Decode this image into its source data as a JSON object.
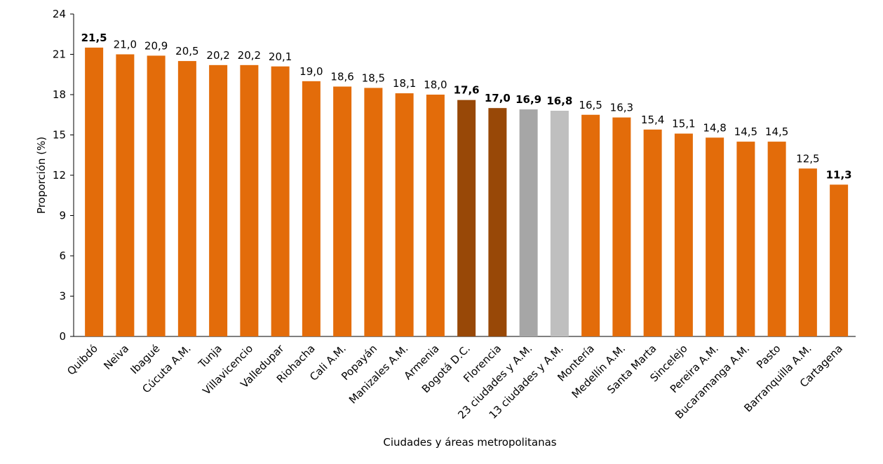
{
  "chart_data": {
    "type": "bar",
    "x_label": "Ciudades y áreas metropolitanas",
    "y_label": "Proporción (%)",
    "categories": [
      "Quibdó",
      "Neiva",
      "Ibagué",
      "Cúcuta A.M.",
      "Tunja",
      "Villavicencio",
      "Valledupar",
      "Riohacha",
      "Cali A.M.",
      "Popayán",
      "Manizales A.M.",
      "Armenia",
      "Bogotá  D.C.",
      "Florencia",
      "23 ciudades y A.M.",
      "13 ciudades y A.M.",
      "Montería",
      "Medellín A.M.",
      "Santa Marta",
      "Sincelejo",
      "Pereira A.M.",
      "Bucaramanga A.M.",
      "Pasto",
      "Barranquilla A.M.",
      "Cartagena"
    ],
    "values": [
      21.5,
      21.0,
      20.9,
      20.5,
      20.2,
      20.2,
      20.1,
      19.0,
      18.6,
      18.5,
      18.1,
      18.0,
      17.6,
      17.0,
      16.9,
      16.8,
      16.5,
      16.3,
      15.4,
      15.1,
      14.8,
      14.5,
      14.5,
      12.5,
      11.3
    ],
    "value_labels": [
      "21,5",
      "21,0",
      "20,9",
      "20,5",
      "20,2",
      "20,2",
      "20,1",
      "19,0",
      "18,6",
      "18,5",
      "18,1",
      "18,0",
      "17,6",
      "17,0",
      "16,9",
      "16,8",
      "16,5",
      "16,3",
      "15,4",
      "15,1",
      "14,8",
      "14,5",
      "14,5",
      "12,5",
      "11,3"
    ],
    "colors": [
      "#e36c0a",
      "#e36c0a",
      "#e36c0a",
      "#e36c0a",
      "#e36c0a",
      "#e36c0a",
      "#e36c0a",
      "#e36c0a",
      "#e36c0a",
      "#e36c0a",
      "#e36c0a",
      "#e36c0a",
      "#984807",
      "#984807",
      "#a6a6a6",
      "#bfbfbf",
      "#e36c0a",
      "#e36c0a",
      "#e36c0a",
      "#e36c0a",
      "#e36c0a",
      "#e36c0a",
      "#e36c0a",
      "#e36c0a",
      "#e36c0a"
    ],
    "label_bold": [
      true,
      false,
      false,
      false,
      false,
      false,
      false,
      false,
      false,
      false,
      false,
      false,
      true,
      true,
      true,
      true,
      false,
      false,
      false,
      false,
      false,
      false,
      false,
      false,
      true
    ],
    "ylim": [
      0,
      24
    ],
    "yticks": [
      0,
      3,
      6,
      9,
      12,
      15,
      18,
      21,
      24
    ],
    "grid": false
  }
}
